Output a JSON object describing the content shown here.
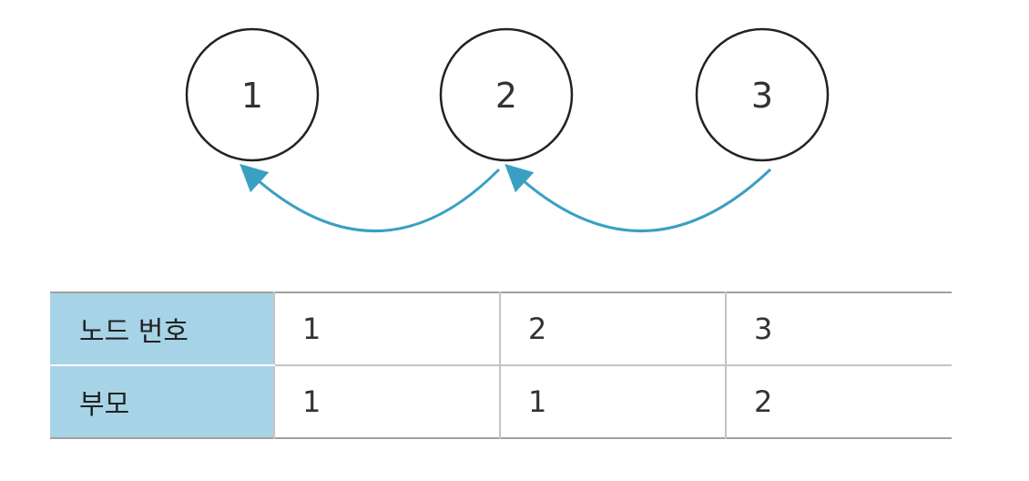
{
  "nodes": [
    {
      "label": "1"
    },
    {
      "label": "2"
    },
    {
      "label": "3"
    }
  ],
  "edges": [
    {
      "from": "2",
      "to": "1"
    },
    {
      "from": "3",
      "to": "2"
    }
  ],
  "table": {
    "rows": [
      {
        "header": "노드 번호",
        "cells": [
          "1",
          "2",
          "3"
        ]
      },
      {
        "header": "부모",
        "cells": [
          "1",
          "1",
          "2"
        ]
      }
    ]
  },
  "colors": {
    "arrow": "#3aa0c3",
    "header_bg": "#a7d3e6",
    "node_stroke": "#222222"
  }
}
